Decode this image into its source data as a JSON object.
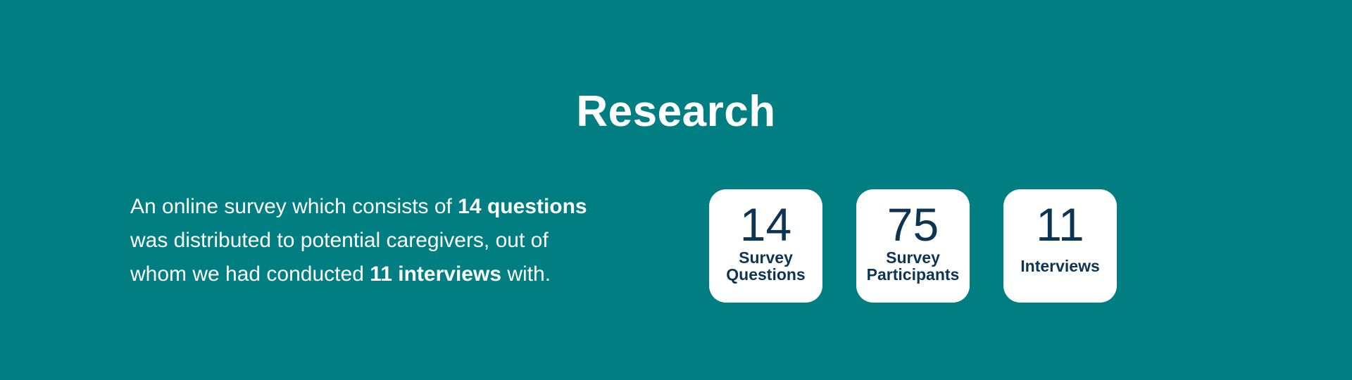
{
  "heading": "Research",
  "description": {
    "line1_a": "An online survey which consists of ",
    "line1_b": "14 questions",
    "line2": "was distributed to potential caregivers, out of",
    "line3_a": "whom we had conducted ",
    "line3_b": "11 interviews",
    "line3_c": " with."
  },
  "stats": [
    {
      "value": "14",
      "label_1": "Survey",
      "label_2": "Questions"
    },
    {
      "value": "75",
      "label_1": "Survey",
      "label_2": "Participants"
    },
    {
      "value": "11",
      "label_1": "Interviews"
    }
  ],
  "colors": {
    "background": "#007e82",
    "card": "#ffffff",
    "card_text": "#0d3553",
    "text": "#ffffff"
  }
}
